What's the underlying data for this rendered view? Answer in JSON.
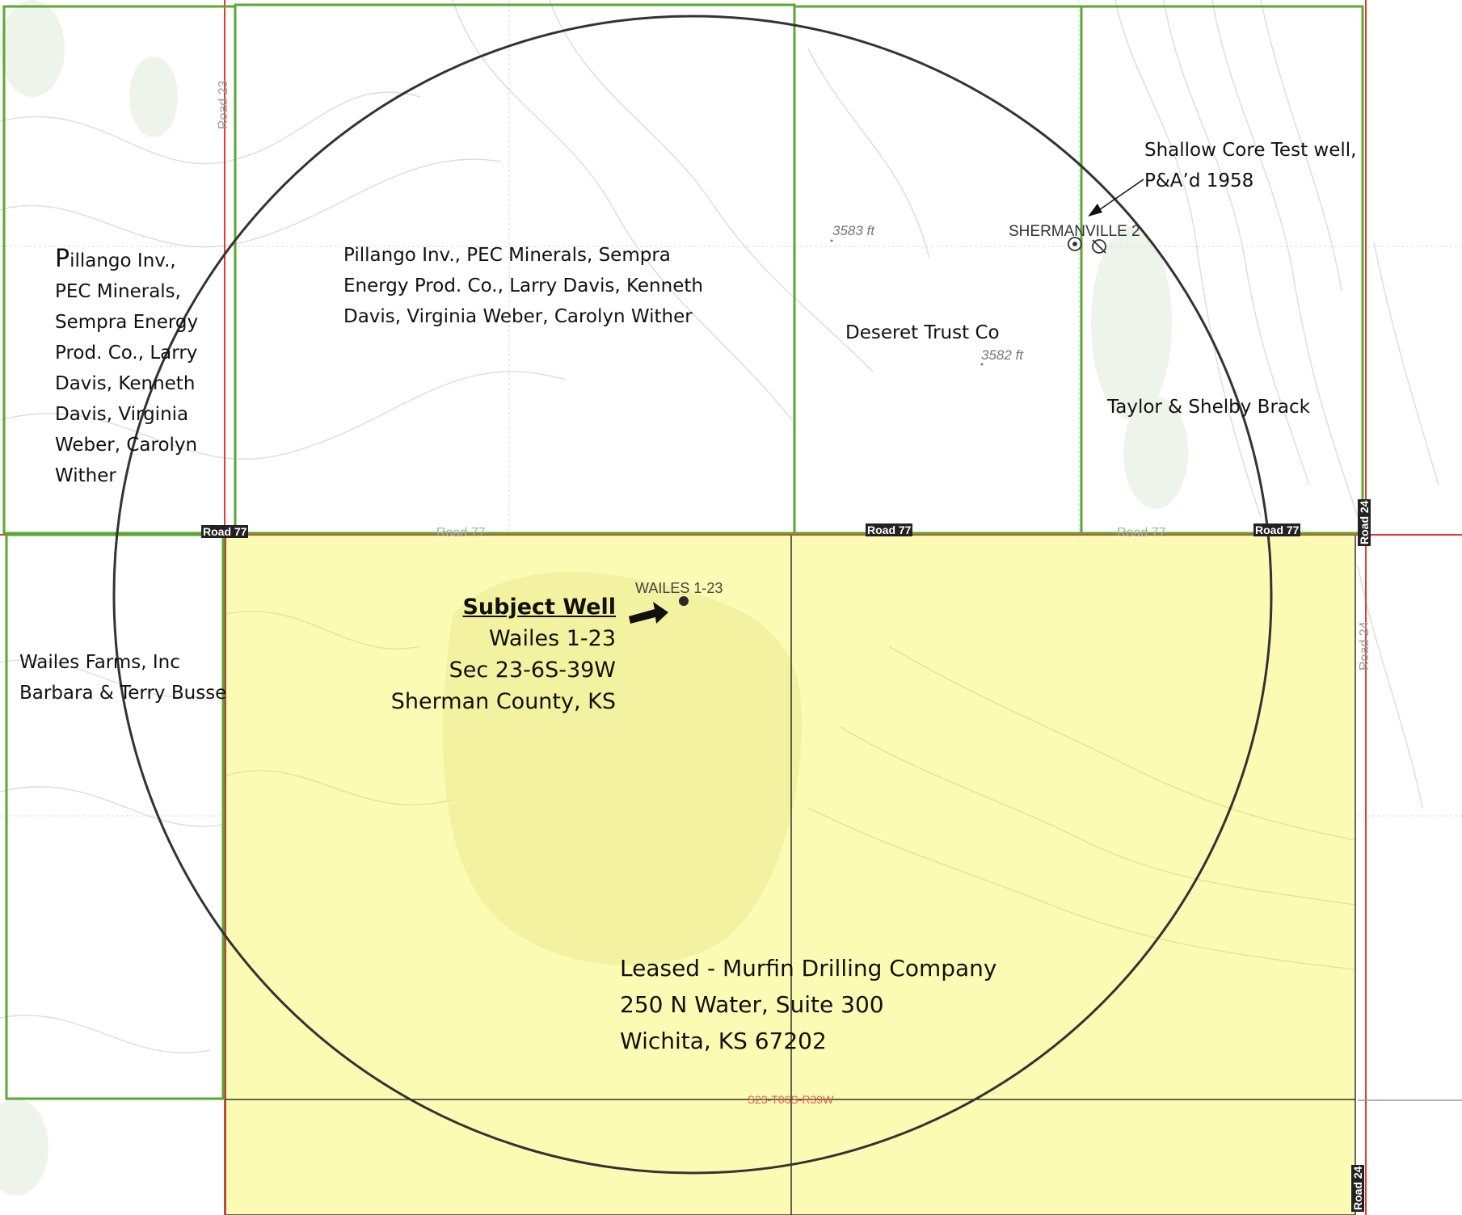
{
  "subject_well": {
    "heading": "Subject Well",
    "name": "Wailes 1-23",
    "section": "Sec 23-6S-39W",
    "county": "Sherman County, KS",
    "map_label": "WAILES 1-23"
  },
  "offset_well": {
    "map_label": "SHERMANVILLE 2",
    "note_line1": "Shallow Core Test well,",
    "note_line2": "P&A’d 1958"
  },
  "owners": {
    "nw_far": {
      "first_letter": "P",
      "lines": [
        "illango Inv.,",
        "PEC Minerals,",
        "Sempra Energy",
        "Prod. Co., Larry",
        "Davis, Kenneth",
        "Davis, Virginia",
        "Weber, Carolyn",
        "Wither"
      ]
    },
    "n_center": {
      "lines": [
        "Pillango Inv., PEC Minerals, Sempra",
        "Energy Prod. Co., Larry Davis, Kenneth",
        "Davis, Virginia Weber, Carolyn Wither"
      ]
    },
    "ne": {
      "name": "Deseret Trust Co"
    },
    "ne_far": {
      "name": "Taylor & Shelby Brack"
    },
    "w": {
      "lines": [
        "Wailes Farms, Inc",
        "Barbara & Terry Busse"
      ]
    }
  },
  "lease": {
    "line1": "Leased - Murfin Drilling Company",
    "line2": "250 N Water, Suite 300",
    "line3": "Wichita, KS 67202"
  },
  "roads": {
    "road_77": "Road 77",
    "road_23": "Road 23",
    "road_24": "Road 24"
  },
  "elevations": [
    "3583 ft",
    "3582 ft"
  ],
  "section_label": "S23-T06S-R39W",
  "colors": {
    "lease_fill": "#fbfbb4",
    "parcel_border": "#5aa832",
    "section_line": "#e03c31",
    "radius_circle": "#333333",
    "contour": "#d9d9d9"
  }
}
